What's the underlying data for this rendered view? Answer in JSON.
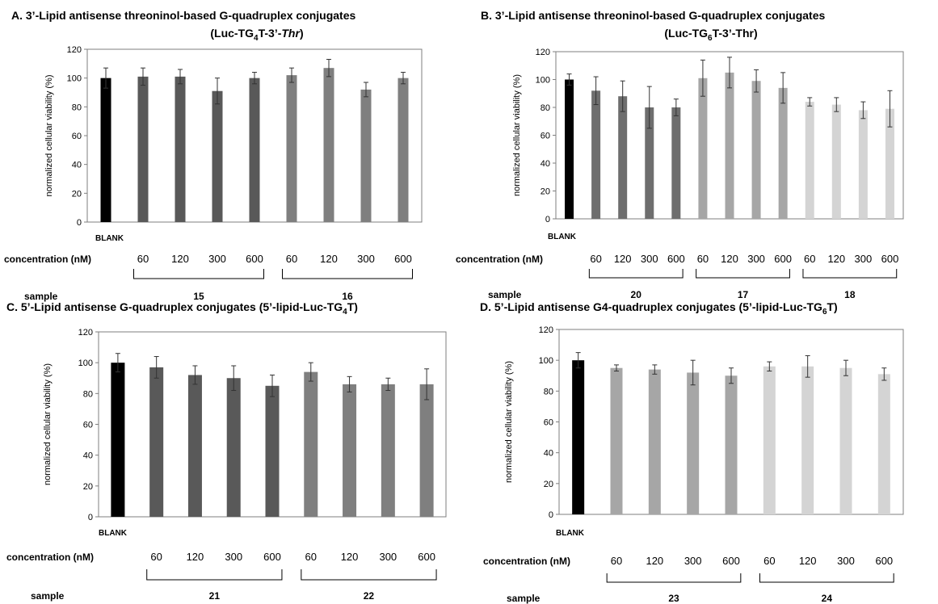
{
  "chart_data": [
    {
      "type": "bar",
      "title_main": "A.   3’-Lipid antisense threoninol-based G-quadruplex conjugates",
      "title_sub": {
        "pre": "(Luc-TG",
        "s": "4",
        "mid": "T-3’-",
        "it": "Thr",
        "post": ")"
      },
      "ylabel": "normalized cellular viability (%)",
      "ylim": [
        0,
        120
      ],
      "yticks": [
        0,
        20,
        40,
        60,
        80,
        100,
        120
      ],
      "blank_label": "BLANK",
      "conc_label": "concentration (nM)",
      "sample_label": "sample",
      "categories": [
        "BLANK",
        "15-60",
        "15-120",
        "15-300",
        "15-600",
        "16-60",
        "16-120",
        "16-300",
        "16-600"
      ],
      "values": [
        100,
        101,
        101,
        91,
        100,
        102,
        107,
        92,
        100
      ],
      "errors": [
        7,
        6,
        5,
        9,
        4,
        5,
        6,
        5,
        4
      ],
      "bar_colors": [
        "#000000",
        "#595959",
        "#595959",
        "#595959",
        "#595959",
        "#7f7f7f",
        "#7f7f7f",
        "#7f7f7f",
        "#7f7f7f"
      ],
      "concentrations": [
        "60",
        "120",
        "300",
        "600",
        "60",
        "120",
        "300",
        "600"
      ],
      "groups": [
        {
          "name": "15",
          "from": 1,
          "to": 4
        },
        {
          "name": "16",
          "from": 5,
          "to": 8
        }
      ]
    },
    {
      "type": "bar",
      "title_main": "B. 3’-Lipid antisense threoninol-based G-quadruplex conjugates",
      "title_sub": {
        "pre": "(Luc-TG",
        "s": "6",
        "mid": "T-3’-Thr)",
        "it": "",
        "post": ""
      },
      "ylabel": "normalized cellular viability (%)",
      "ylim": [
        0,
        120
      ],
      "yticks": [
        0,
        20,
        40,
        60,
        80,
        100,
        120
      ],
      "blank_label": "BLANK",
      "conc_label": "concentration (nM)",
      "sample_label": "sample",
      "categories": [
        "BLANK",
        "20-60",
        "20-120",
        "20-300",
        "20-600",
        "17-60",
        "17-120",
        "17-300",
        "17-600",
        "18-60",
        "18-120",
        "18-300",
        "18-600"
      ],
      "values": [
        100,
        92,
        88,
        80,
        80,
        101,
        105,
        99,
        94,
        84,
        82,
        78,
        79
      ],
      "errors": [
        4,
        10,
        11,
        15,
        6,
        13,
        11,
        8,
        11,
        3,
        5,
        6,
        13
      ],
      "bar_colors": [
        "#000000",
        "#6e6e6e",
        "#6e6e6e",
        "#6e6e6e",
        "#6e6e6e",
        "#a6a6a6",
        "#a6a6a6",
        "#a6a6a6",
        "#a6a6a6",
        "#d4d4d4",
        "#d4d4d4",
        "#d4d4d4",
        "#d4d4d4"
      ],
      "concentrations": [
        "60",
        "120",
        "300",
        "600",
        "60",
        "120",
        "300",
        "600",
        "60",
        "120",
        "300",
        "600"
      ],
      "groups": [
        {
          "name": "20",
          "from": 1,
          "to": 4
        },
        {
          "name": "17",
          "from": 5,
          "to": 8
        },
        {
          "name": "18",
          "from": 9,
          "to": 12
        }
      ]
    },
    {
      "type": "bar",
      "title_main": "C. 5’-Lipid antisense G-quadruplex conjugates (5’-lipid-Luc-TG",
      "title_main_sub": "4",
      "title_main_post": "T)",
      "ylabel": "normalized cellular viability (%)",
      "ylim": [
        0,
        120
      ],
      "yticks": [
        0,
        20,
        40,
        60,
        80,
        100,
        120
      ],
      "blank_label": "BLANK",
      "conc_label": "concentration (nM)",
      "sample_label": "sample",
      "categories": [
        "BLANK",
        "21-60",
        "21-120",
        "21-300",
        "21-600",
        "22-60",
        "22-120",
        "22-300",
        "22-600"
      ],
      "values": [
        100,
        97,
        92,
        90,
        85,
        94,
        86,
        86,
        86
      ],
      "errors": [
        6,
        7,
        6,
        8,
        7,
        6,
        5,
        4,
        10
      ],
      "bar_colors": [
        "#000000",
        "#595959",
        "#595959",
        "#595959",
        "#595959",
        "#7f7f7f",
        "#7f7f7f",
        "#7f7f7f",
        "#7f7f7f"
      ],
      "concentrations": [
        "60",
        "120",
        "300",
        "600",
        "60",
        "120",
        "300",
        "600"
      ],
      "groups": [
        {
          "name": "21",
          "from": 1,
          "to": 4
        },
        {
          "name": "22",
          "from": 5,
          "to": 8
        }
      ]
    },
    {
      "type": "bar",
      "title_main": "D. 5’-Lipid antisense G4-quadruplex conjugates (5’-lipid-Luc-TG",
      "title_main_sub": "6",
      "title_main_post": "T)",
      "ylabel": "normalized cellular viability (%)",
      "ylim": [
        0,
        120
      ],
      "yticks": [
        0,
        20,
        40,
        60,
        80,
        100,
        120
      ],
      "blank_label": "BLANK",
      "conc_label": "concentration (nM)",
      "sample_label": "sample",
      "categories": [
        "BLANK",
        "23-60",
        "23-120",
        "23-300",
        "23-600",
        "24-60",
        "24-120",
        "24-300",
        "24-600"
      ],
      "values": [
        100,
        95,
        94,
        92,
        90,
        96,
        96,
        95,
        91
      ],
      "errors": [
        5,
        2,
        3,
        8,
        5,
        3,
        7,
        5,
        4
      ],
      "bar_colors": [
        "#000000",
        "#a6a6a6",
        "#a6a6a6",
        "#a6a6a6",
        "#a6a6a6",
        "#d4d4d4",
        "#d4d4d4",
        "#d4d4d4",
        "#d4d4d4"
      ],
      "concentrations": [
        "60",
        "120",
        "300",
        "600",
        "60",
        "120",
        "300",
        "600"
      ],
      "groups": [
        {
          "name": "23",
          "from": 1,
          "to": 4
        },
        {
          "name": "24",
          "from": 5,
          "to": 8
        }
      ]
    }
  ]
}
